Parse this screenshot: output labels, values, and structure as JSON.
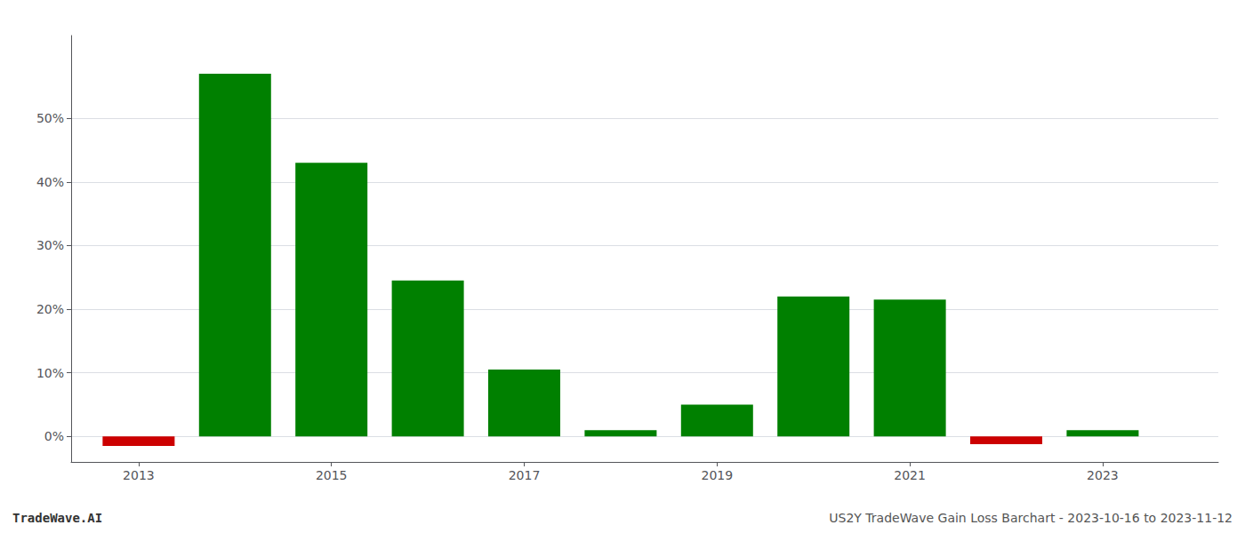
{
  "chart_data": {
    "type": "bar",
    "x": [
      2013,
      2014,
      2015,
      2016,
      2017,
      2018,
      2019,
      2020,
      2021,
      2022,
      2023
    ],
    "values": [
      -0.015,
      0.57,
      0.43,
      0.245,
      0.105,
      0.01,
      0.05,
      0.22,
      0.215,
      -0.012,
      0.01
    ],
    "colors": [
      "#cc0000",
      "#008000",
      "#008000",
      "#008000",
      "#008000",
      "#008000",
      "#008000",
      "#008000",
      "#008000",
      "#cc0000",
      "#008000"
    ],
    "xlim": [
      2012.3,
      2024.2
    ],
    "xticks": [
      2013,
      2015,
      2017,
      2019,
      2021,
      2023
    ],
    "ylim": [
      -0.04,
      0.63
    ],
    "yticks": [
      {
        "value": 0.0,
        "label": "0%"
      },
      {
        "value": 0.1,
        "label": "10%"
      },
      {
        "value": 0.2,
        "label": "20%"
      },
      {
        "value": 0.3,
        "label": "30%"
      },
      {
        "value": 0.4,
        "label": "40%"
      },
      {
        "value": 0.5,
        "label": "50%"
      }
    ],
    "grid": true,
    "annotations": [
      "TradeWave.AI",
      "US2Y TradeWave Gain Loss Barchart - 2023-10-16 to 2023-11-12"
    ]
  }
}
